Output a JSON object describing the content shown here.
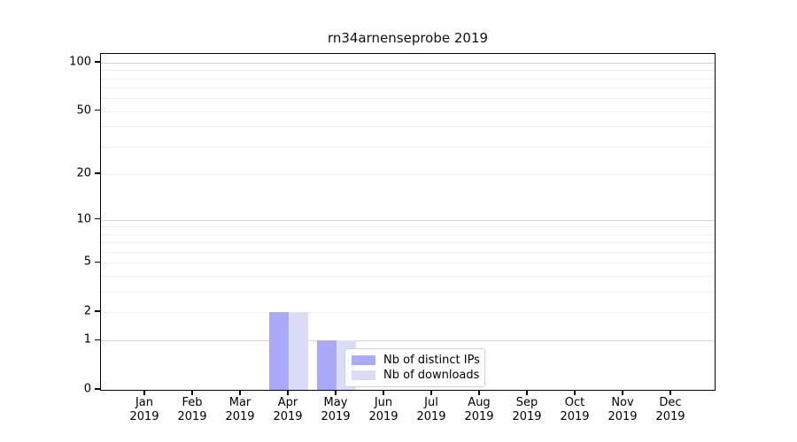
{
  "chart_data": {
    "type": "bar",
    "title": "rn34arnenseprobe 2019",
    "categories": [
      "Jan",
      "Feb",
      "Mar",
      "Apr",
      "May",
      "Jun",
      "Jul",
      "Aug",
      "Sep",
      "Oct",
      "Nov",
      "Dec"
    ],
    "year_label": "2019",
    "series": [
      {
        "name": "Nb of distinct IPs",
        "color": "#aaaaf8",
        "values": [
          0,
          0,
          0,
          2,
          1,
          0,
          0,
          0,
          0,
          0,
          0,
          0
        ]
      },
      {
        "name": "Nb of downloads",
        "color": "#dbdbfa",
        "values": [
          0,
          0,
          0,
          2,
          1,
          0,
          0,
          0,
          0,
          0,
          0,
          0
        ]
      }
    ],
    "xlabel": "",
    "ylabel": "",
    "yscale": "log1p",
    "ylim": [
      0,
      114
    ],
    "yticks": [
      0,
      1,
      2,
      5,
      10,
      20,
      50,
      100
    ],
    "major_gridlines": [
      1,
      10,
      100
    ],
    "minor_gridlines": [
      2,
      3,
      4,
      5,
      6,
      7,
      8,
      9,
      20,
      30,
      40,
      50,
      60,
      70,
      80,
      90
    ],
    "grid": true,
    "legend_position": "lower-center-inside"
  },
  "colors": {
    "grid_major": "#d4d4d4",
    "grid_minor": "#efefef",
    "axis": "#000000",
    "background": "#ffffff"
  }
}
